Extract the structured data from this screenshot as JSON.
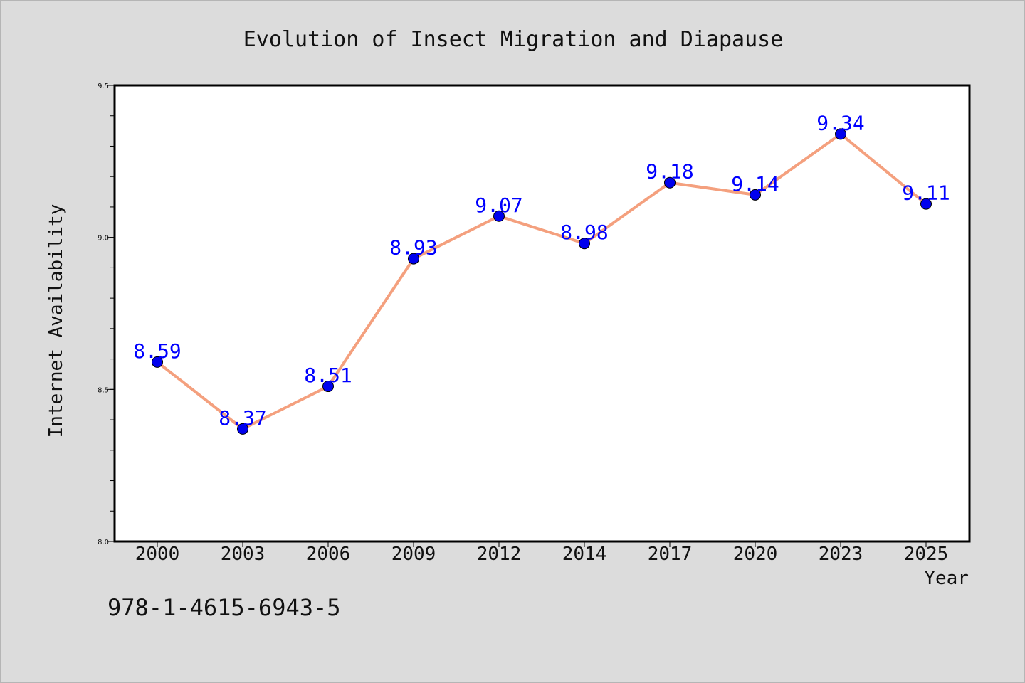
{
  "chart_data": {
    "type": "line",
    "title": "Evolution of Insect Migration and Diapause",
    "xlabel": "Year",
    "ylabel": "Internet Availability",
    "categories": [
      "2000",
      "2003",
      "2006",
      "2009",
      "2012",
      "2014",
      "2017",
      "2020",
      "2023",
      "2025"
    ],
    "series": [
      {
        "values": [
          8.59,
          8.37,
          8.51,
          8.93,
          9.07,
          8.98,
          9.18,
          9.14,
          9.34,
          9.11
        ],
        "labels": [
          "8.59",
          "8.37",
          "8.51",
          "8.93",
          "9.07",
          "8.98",
          "9.18",
          "9.14",
          "9.34",
          "9.11"
        ],
        "line_color": "#f4a07e",
        "marker_color": "#0000ee"
      }
    ],
    "ylim": [
      8.0,
      9.5
    ],
    "yticks": [
      "8.0",
      "8.5",
      "9.0",
      "9.5"
    ],
    "grid": false,
    "label_color": "#0000ff"
  },
  "footer": {
    "isbn": "978-1-4615-6943-5"
  }
}
